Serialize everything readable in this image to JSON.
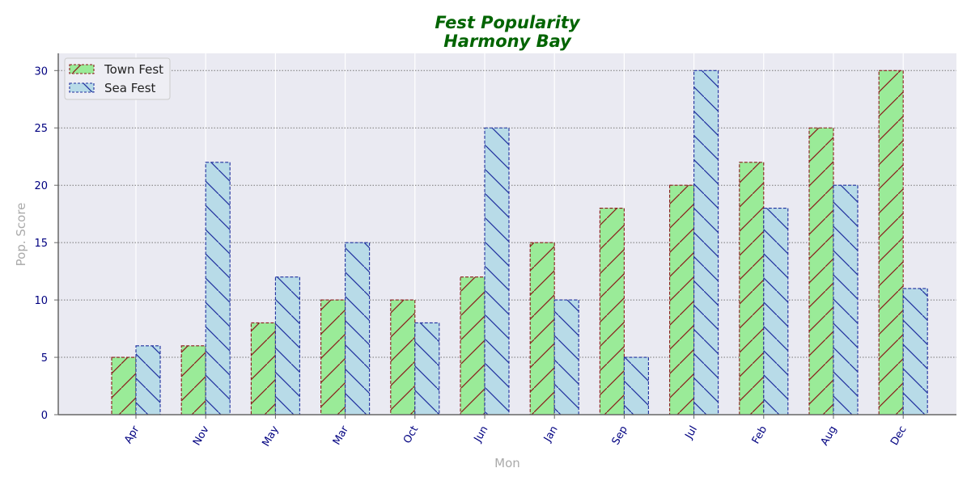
{
  "chart_data": {
    "type": "bar",
    "title_lines": [
      "Fest Popularity",
      "Harmony Bay"
    ],
    "xlabel": "Mon",
    "ylabel": "Pop. Score",
    "categories": [
      "Apr",
      "Nov",
      "May",
      "Mar",
      "Oct",
      "Jun",
      "Jan",
      "Sep",
      "Jul",
      "Feb",
      "Aug",
      "Dec"
    ],
    "series": [
      {
        "name": "Town Fest",
        "values": [
          5,
          6,
          8,
          10,
          10,
          12,
          15,
          18,
          20,
          22,
          25,
          30
        ],
        "fill": "#9aeb98",
        "edge": "#8b1a1a",
        "hatch": "/"
      },
      {
        "name": "Sea Fest",
        "values": [
          6,
          22,
          12,
          15,
          8,
          25,
          10,
          5,
          30,
          18,
          20,
          11
        ],
        "fill": "#b8dbe8",
        "edge": "#1f2f9e",
        "hatch": "\\"
      }
    ],
    "ylim": [
      0,
      31.5
    ],
    "yticks": [
      0,
      5,
      10,
      15,
      20,
      25,
      30
    ],
    "grid": true,
    "legend": "top-left",
    "colors": {
      "title": "#006400",
      "ticks": "#000080",
      "axis_label": "#aaaaaa",
      "plot_bg": "#eaeaf2"
    }
  }
}
